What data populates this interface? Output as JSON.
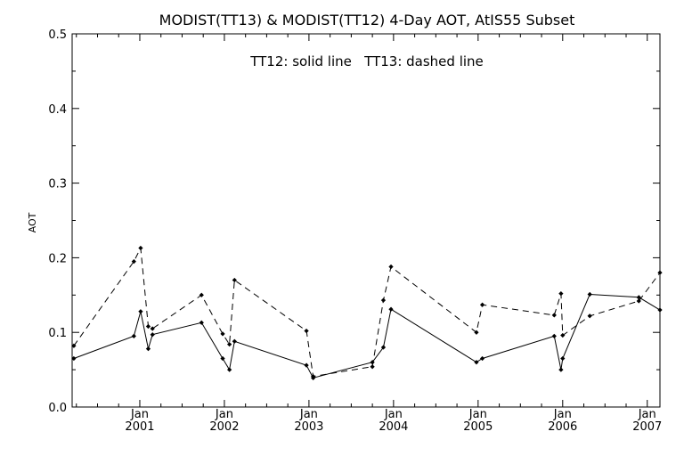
{
  "chart_data": {
    "type": "line",
    "title": "MODIST(TT13) & MODIST(TT12) 4-Day AOT, AtIS55 Subset",
    "annotation": "TT12: solid line   TT13: dashed line",
    "ylabel": "AOT",
    "xlabel": "",
    "ylim": [
      0.0,
      0.5
    ],
    "xlim": [
      2000.2,
      2007.15
    ],
    "yticks": [
      "0.0",
      "0.1",
      "0.2",
      "0.3",
      "0.4",
      "0.5"
    ],
    "xticks": [
      {
        "month": "Jan",
        "year": "2001"
      },
      {
        "month": "Jan",
        "year": "2002"
      },
      {
        "month": "Jan",
        "year": "2003"
      },
      {
        "month": "Jan",
        "year": "2004"
      },
      {
        "month": "Jan",
        "year": "2005"
      },
      {
        "month": "Jan",
        "year": "2006"
      },
      {
        "month": "Jan",
        "year": "2007"
      }
    ],
    "grid": false,
    "series": [
      {
        "name": "TT12",
        "style": "solid",
        "x": [
          2000.22,
          2000.93,
          2001.01,
          2001.1,
          2001.15,
          2001.73,
          2001.98,
          2002.06,
          2002.12,
          2002.97,
          2003.05,
          2003.75,
          2003.88,
          2003.97,
          2004.98,
          2005.05,
          2005.9,
          2005.98,
          2006.0,
          2006.32,
          2006.9,
          2007.15
        ],
        "y": [
          0.065,
          0.095,
          0.128,
          0.078,
          0.097,
          0.113,
          0.065,
          0.05,
          0.088,
          0.056,
          0.039,
          0.06,
          0.08,
          0.131,
          0.06,
          0.065,
          0.095,
          0.05,
          0.065,
          0.151,
          0.147,
          0.13
        ]
      },
      {
        "name": "TT13",
        "style": "dashed",
        "x": [
          2000.22,
          2000.93,
          2001.01,
          2001.1,
          2001.15,
          2001.73,
          2001.98,
          2002.06,
          2002.12,
          2002.97,
          2003.05,
          2003.75,
          2003.88,
          2003.97,
          2004.98,
          2005.05,
          2005.9,
          2005.98,
          2006.0,
          2006.32,
          2006.9,
          2007.15
        ],
        "y": [
          0.082,
          0.195,
          0.213,
          0.108,
          0.105,
          0.15,
          0.098,
          0.084,
          0.17,
          0.102,
          0.041,
          0.054,
          0.143,
          0.188,
          0.1,
          0.137,
          0.123,
          0.152,
          0.096,
          0.122,
          0.142,
          0.18
        ]
      }
    ]
  }
}
